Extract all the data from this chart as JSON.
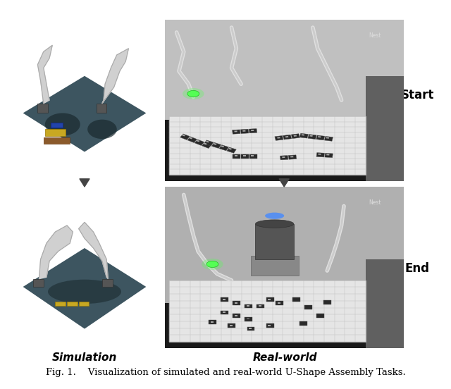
{
  "figure_width": 6.4,
  "figure_height": 5.52,
  "dpi": 100,
  "background_color": "#ffffff",
  "caption_text": "Fig. 1.    Visualization of simulated and real-world U-Shape Assembly Tasks.",
  "caption_fontsize": 9.5,
  "label_simulation": "Simulation",
  "label_real": "Real-world",
  "label_start": "Start",
  "label_end": "End",
  "label_fontsize": 11,
  "sim_bg": "#c8a84b",
  "sim_floor_color": "#3d5055",
  "sim_floor_shadow": "#1a2a2f",
  "real_wall_color": "#c8c8c8",
  "real_floor_color": "#1a1a1a",
  "real_table_color": "#e8e8e8",
  "arrow_color": "#444444",
  "nest_label_color": "#dddddd"
}
